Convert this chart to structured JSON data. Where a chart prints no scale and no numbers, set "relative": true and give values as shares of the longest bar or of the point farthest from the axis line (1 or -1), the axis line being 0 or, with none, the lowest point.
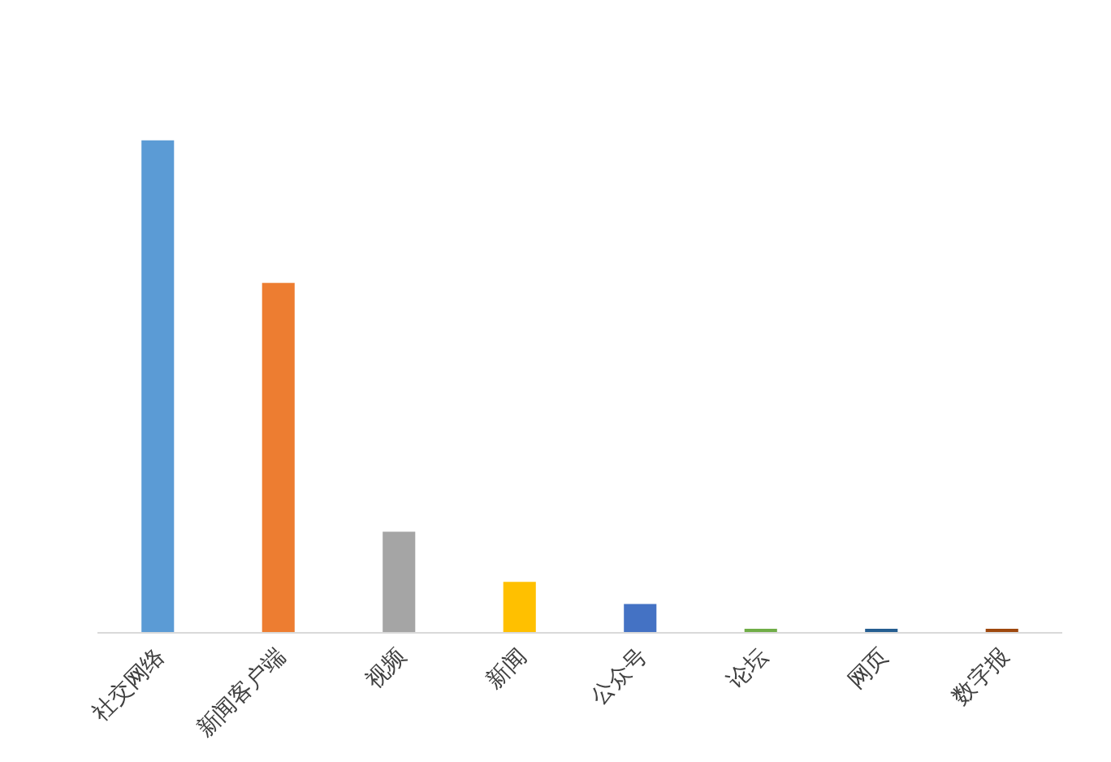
{
  "chart_data": {
    "type": "bar",
    "relative": true,
    "categories": [
      "社交网络",
      "新闻客户端",
      "视频",
      "新闻",
      "公众号",
      "论坛",
      "网页",
      "数字报"
    ],
    "values": [
      1,
      0.71,
      0.204,
      0.102,
      0.057,
      0.006,
      0.006,
      0.006
    ],
    "colors": [
      "#5b9bd5",
      "#ed7d31",
      "#a5a5a5",
      "#ffc000",
      "#4472c4",
      "#70ad47",
      "#255e91",
      "#9e480e"
    ]
  }
}
